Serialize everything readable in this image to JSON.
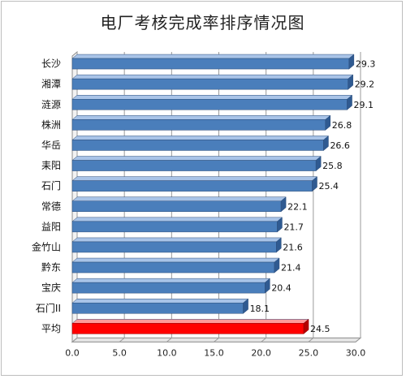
{
  "chart_data": {
    "type": "bar",
    "orientation": "horizontal",
    "title": "电厂考核完成率排序情况图",
    "xlabel": "",
    "ylabel": "",
    "xlim": [
      0,
      30
    ],
    "xticks": [
      "0.0",
      "5.0",
      "10.0",
      "15.0",
      "20.0",
      "25.0",
      "30.0"
    ],
    "grid": true,
    "legend": "none",
    "categories": [
      "长沙",
      "湘潭",
      "涟源",
      "株洲",
      "华岳",
      "耒阳",
      "石门",
      "常德",
      "益阳",
      "金竹山",
      "黔东",
      "宝庆",
      "石门II",
      "平均"
    ],
    "values": [
      29.3,
      29.2,
      29.1,
      26.8,
      26.6,
      25.8,
      25.4,
      22.1,
      21.7,
      21.6,
      21.4,
      20.4,
      18.1,
      24.5
    ],
    "value_labels": [
      "29.3",
      "29.2",
      "29.1",
      "26.8",
      "26.6",
      "25.8",
      "25.4",
      "22.1",
      "21.7",
      "21.6",
      "21.4",
      "20.4",
      "18.1",
      "24.5"
    ],
    "colors": {
      "bar": "#4a7ebb",
      "bar_top": "#a9c4e8",
      "highlight_bar": "#ff0000",
      "highlight_top": "#ff9a9a",
      "gridline": "#9a9a9a"
    },
    "highlight_index": 13
  }
}
